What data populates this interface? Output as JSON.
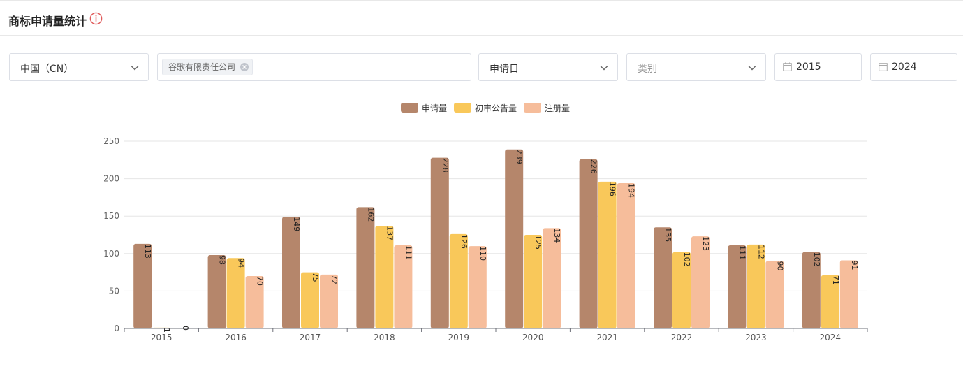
{
  "header": {
    "title": "商标申请量统计",
    "info_icon": "info-circle-icon"
  },
  "filters": {
    "country": {
      "value": "中国（CN）",
      "icon": "chevron-down-icon"
    },
    "applicant": {
      "tag": "谷歌有限责任公司",
      "close_icon": "tag-close-icon"
    },
    "date_type": {
      "value": "申请日",
      "icon": "chevron-down-icon"
    },
    "category": {
      "placeholder": "类别",
      "icon": "chevron-down-icon"
    },
    "start_year": {
      "value": "2015",
      "icon": "calendar-icon"
    },
    "end_year": {
      "value": "2024",
      "icon": "calendar-icon"
    }
  },
  "colors": {
    "series1": "#b5866b",
    "series2": "#f9c85a",
    "series3": "#f6bd9b",
    "accent": "#e05a5a"
  },
  "chart_data": {
    "type": "bar",
    "title": "",
    "xlabel": "",
    "ylabel": "",
    "ylim": [
      0,
      250
    ],
    "yticks": [
      0,
      50,
      100,
      150,
      200,
      250
    ],
    "categories": [
      "2015",
      "2016",
      "2017",
      "2018",
      "2019",
      "2020",
      "2021",
      "2022",
      "2023",
      "2024"
    ],
    "series": [
      {
        "name": "申请量",
        "color": "#b5866b",
        "values": [
          113,
          98,
          149,
          162,
          228,
          239,
          226,
          135,
          111,
          102
        ]
      },
      {
        "name": "初审公告量",
        "color": "#f9c85a",
        "values": [
          1,
          94,
          75,
          137,
          126,
          125,
          196,
          102,
          112,
          71
        ]
      },
      {
        "name": "注册量",
        "color": "#f6bd9b",
        "values": [
          0,
          70,
          72,
          111,
          110,
          134,
          194,
          123,
          90,
          91
        ]
      }
    ],
    "legend_position": "top-center",
    "grid": true
  }
}
